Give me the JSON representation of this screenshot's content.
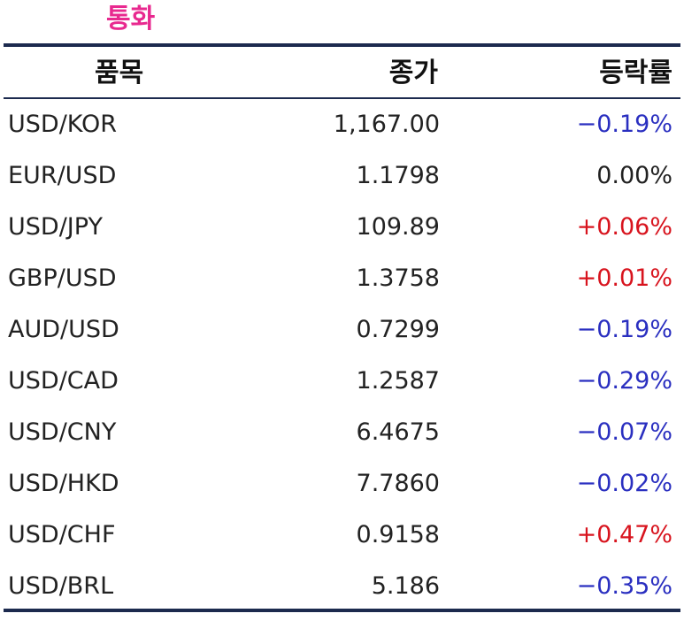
{
  "title": "통화",
  "columns": {
    "item": "품목",
    "price": "종가",
    "change": "등락률"
  },
  "rows": [
    {
      "item": "USD/KOR",
      "price": "1,167.00",
      "change": "−0.19%",
      "direction": "neg"
    },
    {
      "item": "EUR/USD",
      "price": "1.1798",
      "change": "0.00%",
      "direction": "flat"
    },
    {
      "item": "USD/JPY",
      "price": "109.89",
      "change": "+0.06%",
      "direction": "pos"
    },
    {
      "item": "GBP/USD",
      "price": "1.3758",
      "change": "+0.01%",
      "direction": "pos"
    },
    {
      "item": "AUD/USD",
      "price": "0.7299",
      "change": "−0.19%",
      "direction": "neg"
    },
    {
      "item": "USD/CAD",
      "price": "1.2587",
      "change": "−0.29%",
      "direction": "neg"
    },
    {
      "item": "USD/CNY",
      "price": "6.4675",
      "change": "−0.07%",
      "direction": "neg"
    },
    {
      "item": "USD/HKD",
      "price": "7.7860",
      "change": "−0.02%",
      "direction": "neg"
    },
    {
      "item": "USD/CHF",
      "price": "0.9158",
      "change": "+0.47%",
      "direction": "pos"
    },
    {
      "item": "USD/BRL",
      "price": "5.186",
      "change": "−0.35%",
      "direction": "neg"
    }
  ],
  "colors": {
    "title": "#e8298f",
    "rule": "#1c2a4e",
    "negative": "#2a2fc0",
    "positive": "#d8141e",
    "neutral": "#222222"
  }
}
